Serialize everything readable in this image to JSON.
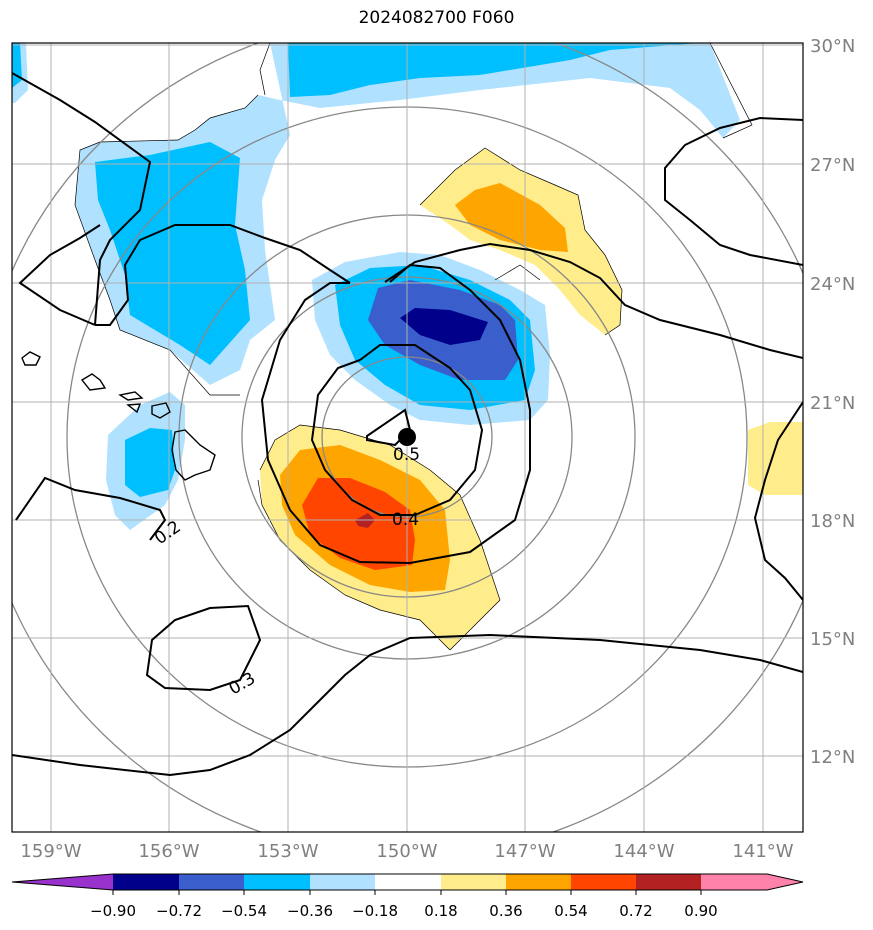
{
  "title": "2024082700 F060",
  "lon_labels": [
    "159°W",
    "156°W",
    "153°W",
    "150°W",
    "147°W",
    "144°W",
    "141°W"
  ],
  "lat_labels": [
    "30°N",
    "27°N",
    "24°N",
    "21°N",
    "18°N",
    "15°N",
    "12°N"
  ],
  "contour_labels": [
    "0.5",
    "0.4",
    "0.2",
    "0.3"
  ],
  "colorbar": {
    "ticks": [
      "−0.90",
      "−0.72",
      "−0.54",
      "−0.36",
      "−0.18",
      "0.18",
      "0.36",
      "0.54",
      "0.72",
      "0.90"
    ],
    "colors": [
      "#9932CC",
      "#00008B",
      "#3A5FCD",
      "#00BFFF",
      "#B0E2FF",
      "#FFFFFF",
      "#FFEC8B",
      "#FFA500",
      "#FF4500",
      "#B22222",
      "#FF82AB"
    ]
  },
  "center_marker": "storm-center"
}
